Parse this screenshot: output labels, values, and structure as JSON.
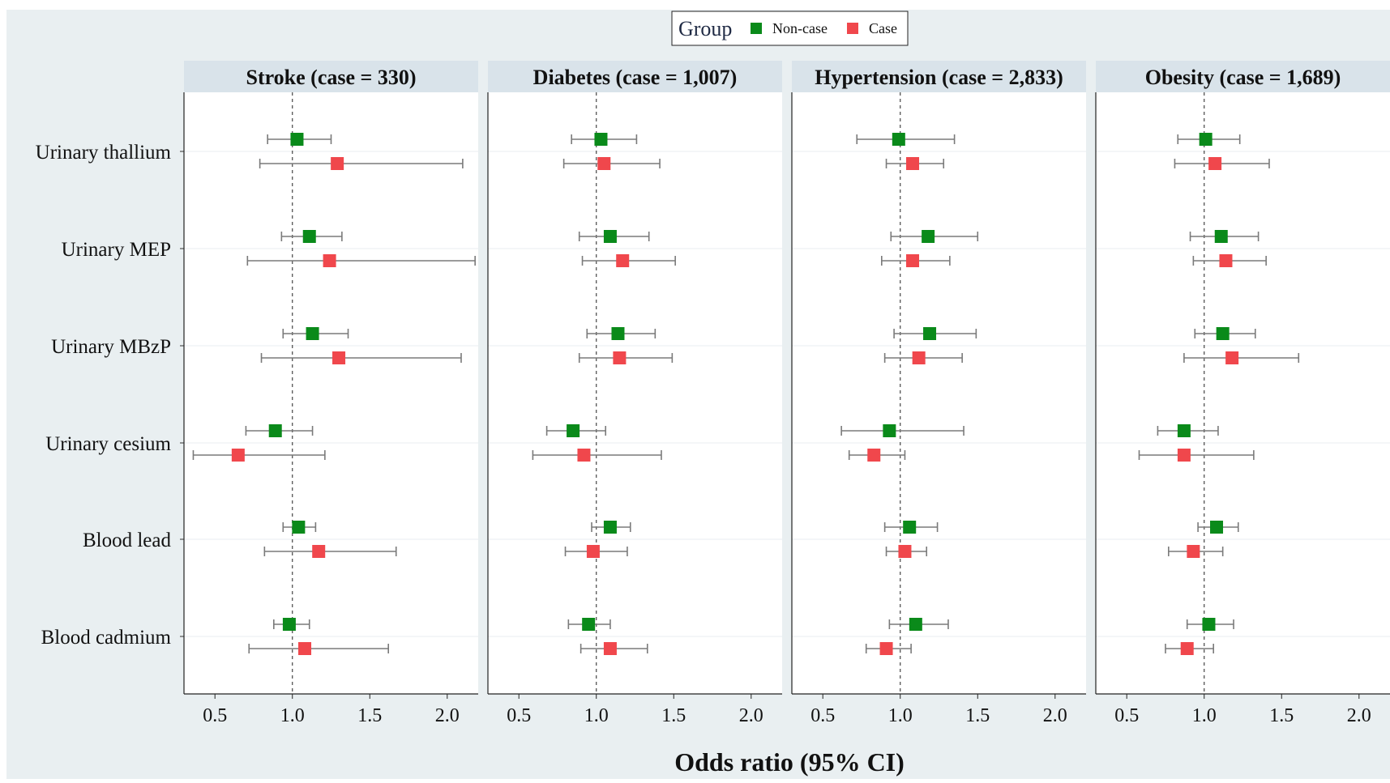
{
  "chart_data": {
    "type": "forest",
    "xlabel": "Odds ratio (95% CI)",
    "xlim": [
      0.3,
      2.2
    ],
    "xticks": [
      0.5,
      1.0,
      1.5,
      2.0
    ],
    "xtick_labels": [
      "0.5",
      "1.0",
      "1.5",
      "2.0"
    ],
    "reference_line": 1.0,
    "legend": {
      "title": "Group",
      "position": "top-center",
      "entries": [
        {
          "label": "Non-case",
          "color": "#0a8a1a"
        },
        {
          "label": "Case",
          "color": "#f0474c"
        }
      ]
    },
    "rows": [
      "Urinary thallium",
      "Urinary MEP",
      "Urinary MBzP",
      "Urinary cesium",
      "Blood lead",
      "Blood cadmium"
    ],
    "panels": [
      {
        "title": "Stroke (case = 330)",
        "noncase": [
          [
            1.03,
            0.84,
            1.25
          ],
          [
            1.11,
            0.93,
            1.32
          ],
          [
            1.13,
            0.94,
            1.36
          ],
          [
            0.89,
            0.7,
            1.13
          ],
          [
            1.04,
            0.94,
            1.15
          ],
          [
            0.98,
            0.88,
            1.11
          ]
        ],
        "case": [
          [
            1.29,
            0.79,
            2.1
          ],
          [
            1.24,
            0.71,
            2.18
          ],
          [
            1.3,
            0.8,
            2.09
          ],
          [
            0.65,
            0.36,
            1.21
          ],
          [
            1.17,
            0.82,
            1.67
          ],
          [
            1.08,
            0.72,
            1.62
          ]
        ]
      },
      {
        "title": "Diabetes (case = 1,007)",
        "noncase": [
          [
            1.03,
            0.84,
            1.26
          ],
          [
            1.09,
            0.89,
            1.34
          ],
          [
            1.14,
            0.94,
            1.38
          ],
          [
            0.85,
            0.68,
            1.06
          ],
          [
            1.09,
            0.97,
            1.22
          ],
          [
            0.95,
            0.82,
            1.09
          ]
        ],
        "case": [
          [
            1.05,
            0.79,
            1.41
          ],
          [
            1.17,
            0.91,
            1.51
          ],
          [
            1.15,
            0.89,
            1.49
          ],
          [
            0.92,
            0.59,
            1.42
          ],
          [
            0.98,
            0.8,
            1.2
          ],
          [
            1.09,
            0.9,
            1.33
          ]
        ]
      },
      {
        "title": "Hypertension (case = 2,833)",
        "noncase": [
          [
            0.99,
            0.72,
            1.35
          ],
          [
            1.18,
            0.94,
            1.5
          ],
          [
            1.19,
            0.96,
            1.49
          ],
          [
            0.93,
            0.62,
            1.41
          ],
          [
            1.06,
            0.9,
            1.24
          ],
          [
            1.1,
            0.93,
            1.31
          ]
        ],
        "case": [
          [
            1.08,
            0.91,
            1.28
          ],
          [
            1.08,
            0.88,
            1.32
          ],
          [
            1.12,
            0.9,
            1.4
          ],
          [
            0.83,
            0.67,
            1.03
          ],
          [
            1.03,
            0.91,
            1.17
          ],
          [
            0.91,
            0.78,
            1.07
          ]
        ]
      },
      {
        "title": "Obesity (case = 1,689)",
        "noncase": [
          [
            1.01,
            0.83,
            1.23
          ],
          [
            1.11,
            0.91,
            1.35
          ],
          [
            1.12,
            0.94,
            1.33
          ],
          [
            0.87,
            0.7,
            1.09
          ],
          [
            1.08,
            0.96,
            1.22
          ],
          [
            1.03,
            0.89,
            1.19
          ]
        ],
        "case": [
          [
            1.07,
            0.81,
            1.42
          ],
          [
            1.14,
            0.93,
            1.4
          ],
          [
            1.18,
            0.87,
            1.61
          ],
          [
            0.87,
            0.58,
            1.32
          ],
          [
            0.93,
            0.77,
            1.12
          ],
          [
            0.89,
            0.75,
            1.06
          ]
        ]
      }
    ]
  }
}
